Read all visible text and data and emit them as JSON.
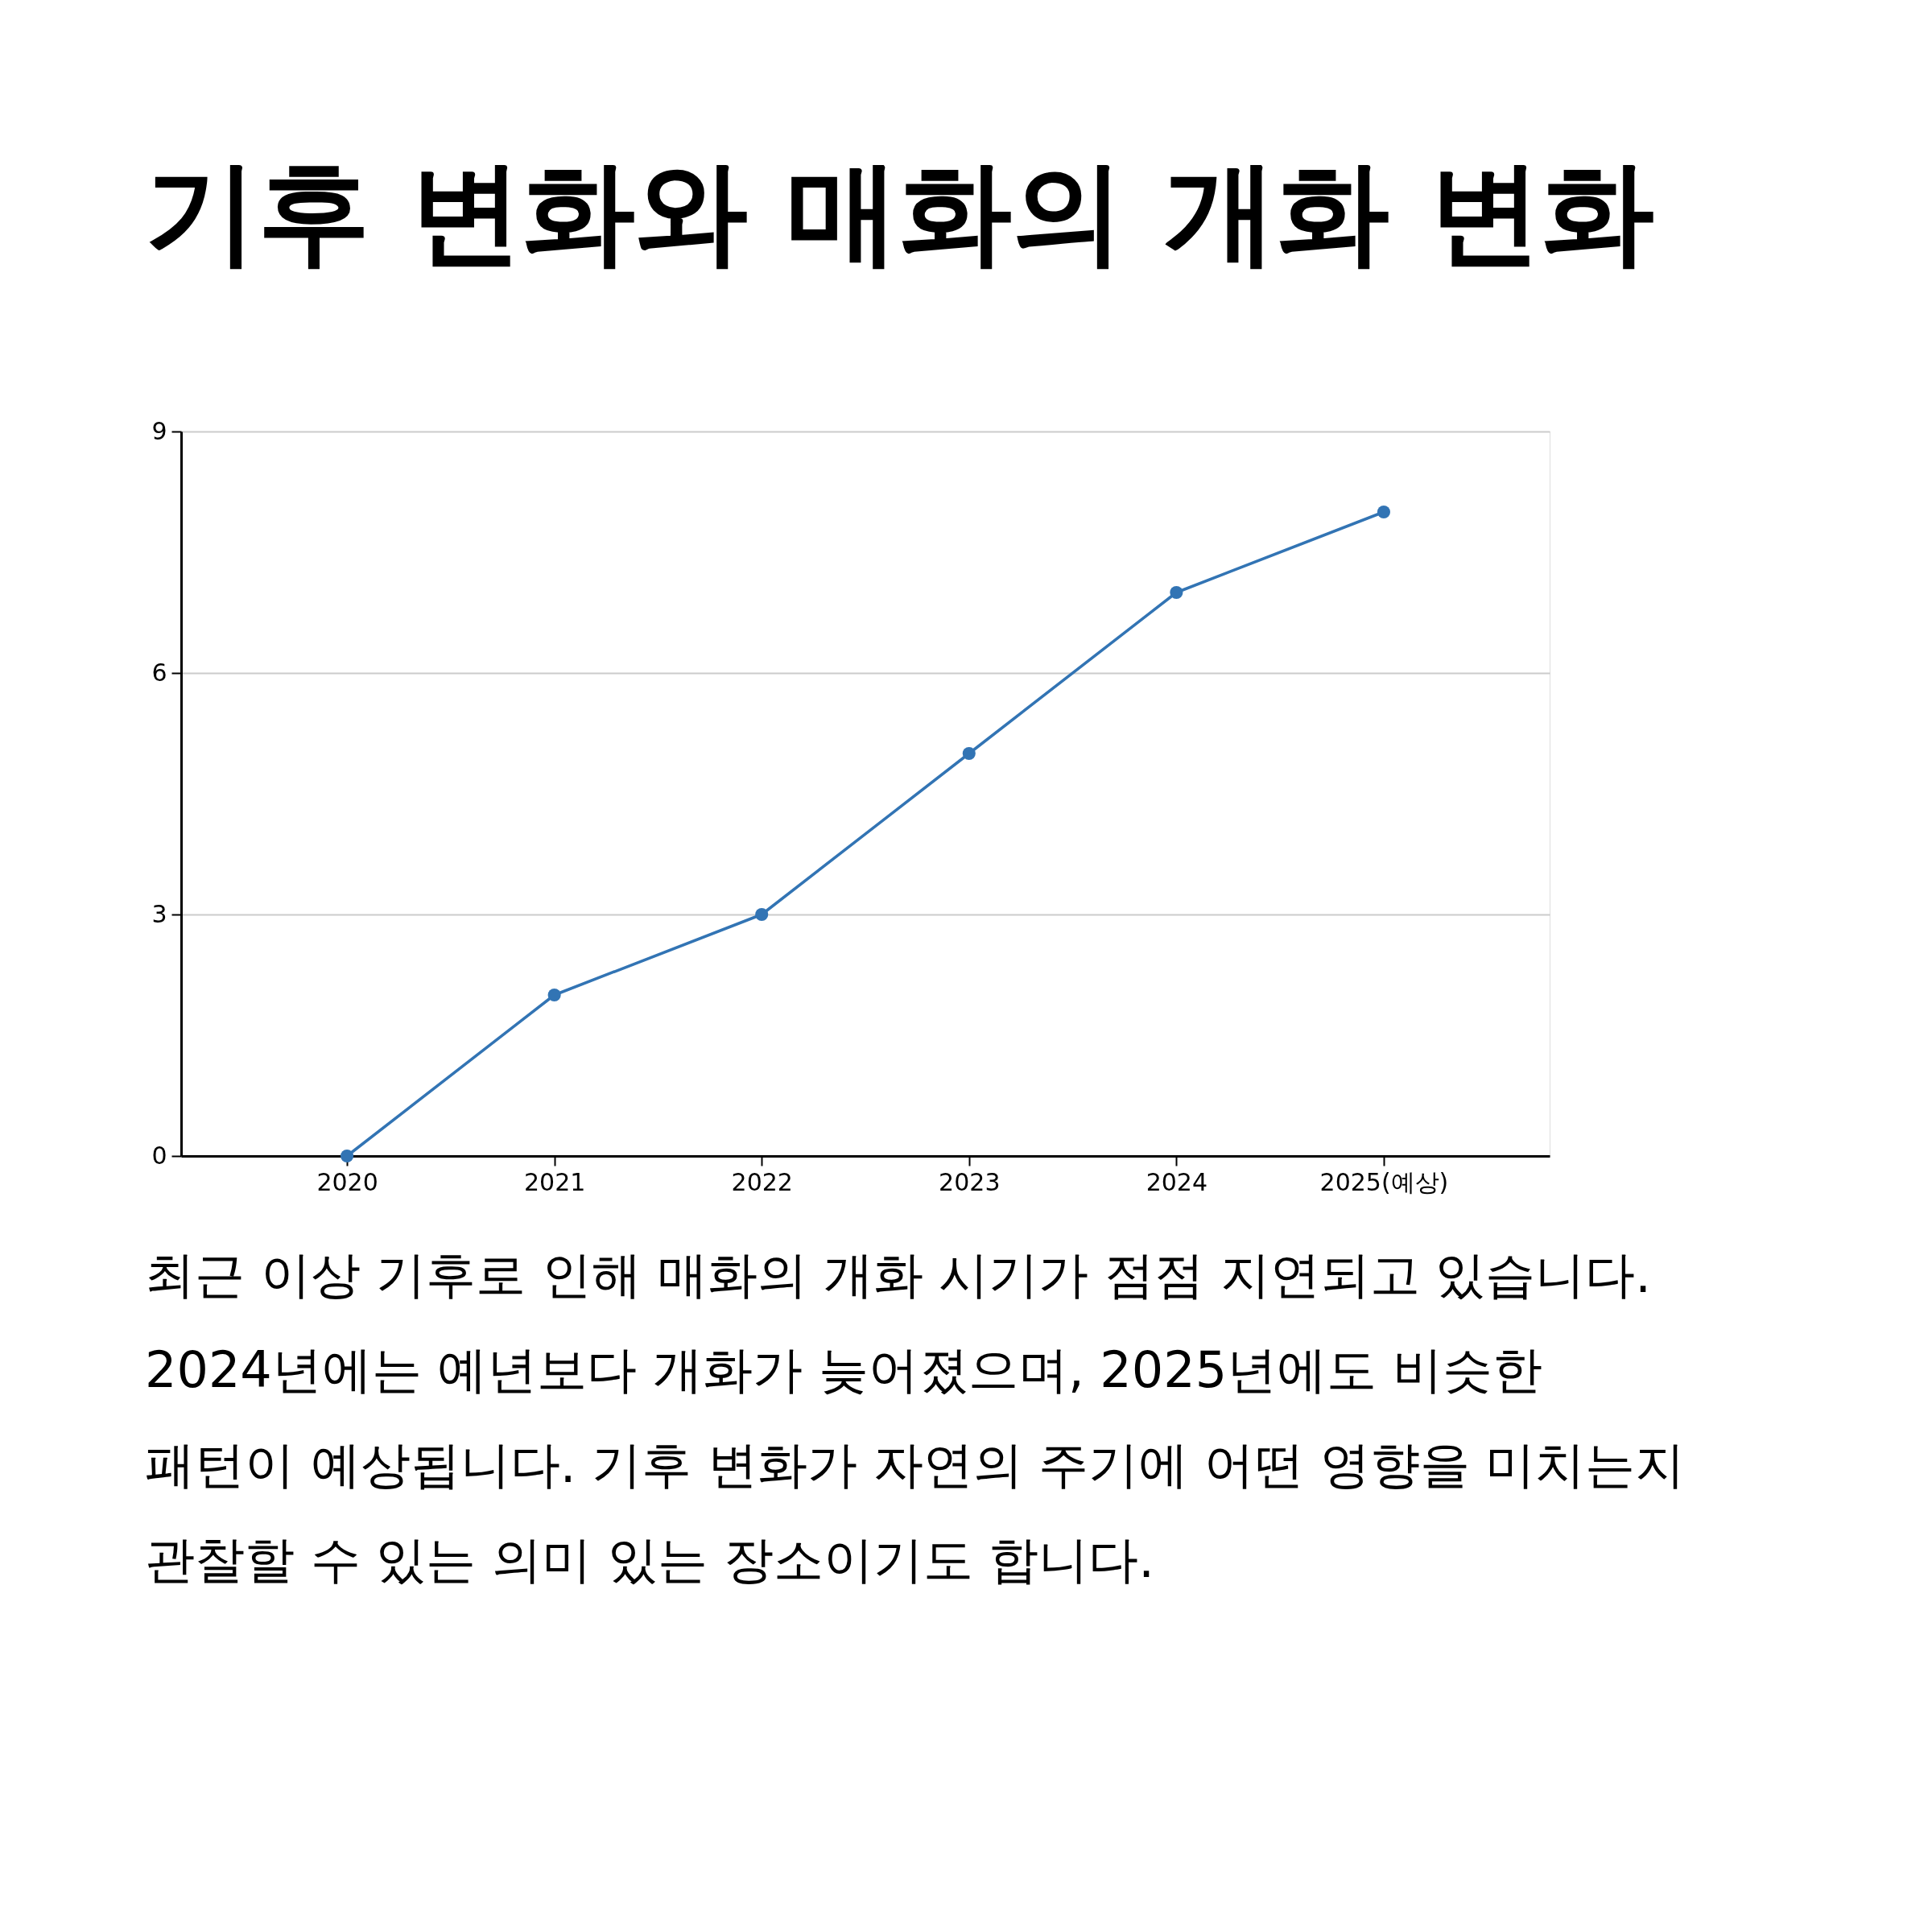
{
  "chart_data": {
    "type": "line",
    "title": "기후 변화와 매화의 개화 변화",
    "categories": [
      "2020",
      "2021",
      "2022",
      "2023",
      "2024",
      "2025(예상)"
    ],
    "series": [
      {
        "color": "#3274b4",
        "values": [
          0,
          2,
          3,
          5,
          7,
          8
        ]
      }
    ],
    "ylim": [
      0,
      9
    ],
    "yticks": [
      0,
      3,
      6,
      9
    ],
    "grid": "y",
    "marker": "circle",
    "annotations": [
      "최근 이상 기후로 인해 매화의 개화 시기가 점점 지연되고 있습니다. 2024년에는 예년보다 개화가 늦어졌으며, 2025년에도 비슷한 패턴이 예상됩니다. 기후 변화가 자연의 주기에 어떤 영향을 미치는지 관찰할 수 있는 의미 있는 장소이기도 합니다."
    ]
  }
}
